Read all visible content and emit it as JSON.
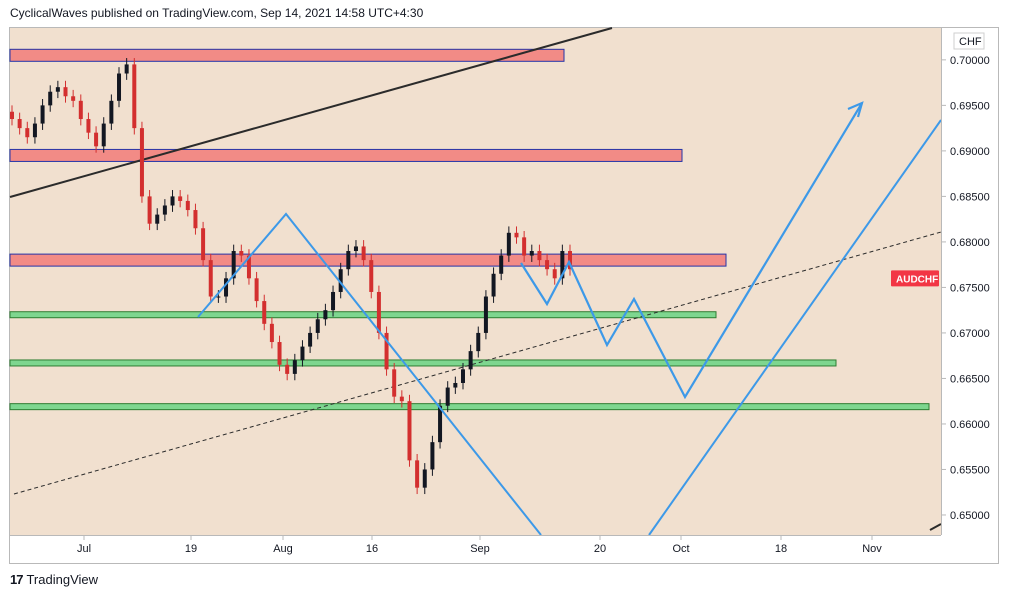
{
  "header": {
    "text": "CyclicalWaves published on TradingView.com, Sep 14, 2021 14:58 UTC+4:30"
  },
  "footer": {
    "logo": "17",
    "brand": "TradingView"
  },
  "chart_data": {
    "type": "candlestick",
    "symbol": "AUDCHF",
    "currency": "CHF",
    "ylim": [
      0.6478,
      0.7035
    ],
    "y_ticks": [
      "0.70000",
      "0.69500",
      "0.69000",
      "0.68500",
      "0.68000",
      "0.67500",
      "0.67000",
      "0.66500",
      "0.66000",
      "0.65500",
      "0.65000"
    ],
    "x_ticks": [
      "Jul",
      "19",
      "Aug",
      "16",
      "Sep",
      "20",
      "Oct",
      "18",
      "Nov"
    ],
    "price_label": {
      "text": "AUDCHF",
      "value": 0.676,
      "color": "#f23645"
    },
    "colors": {
      "background": "#f1e0cf",
      "resistance": "#f28b86",
      "support": "#7ed68f",
      "path": "#3d99e8",
      "trendline": "#2b2b2b"
    },
    "resistance_zones": [
      0.7005,
      0.6895,
      0.678
    ],
    "support_zones": [
      0.672,
      0.6667,
      0.6619
    ],
    "closes": [
      0.6935,
      0.6925,
      0.6915,
      0.693,
      0.695,
      0.6965,
      0.697,
      0.696,
      0.6955,
      0.6935,
      0.692,
      0.6905,
      0.693,
      0.6955,
      0.6985,
      0.6995,
      0.6925,
      0.685,
      0.682,
      0.683,
      0.684,
      0.685,
      0.6845,
      0.6835,
      0.6815,
      0.678,
      0.674,
      0.674,
      0.676,
      0.679,
      0.6785,
      0.676,
      0.6735,
      0.671,
      0.669,
      0.6665,
      0.6655,
      0.667,
      0.6685,
      0.67,
      0.6715,
      0.6725,
      0.6745,
      0.677,
      0.679,
      0.6795,
      0.678,
      0.6745,
      0.67,
      0.666,
      0.663,
      0.6625,
      0.656,
      0.653,
      0.655,
      0.658,
      0.662,
      0.664,
      0.6645,
      0.666,
      0.668,
      0.67,
      0.674,
      0.6765,
      0.6785,
      0.681,
      0.6805,
      0.6785,
      0.679,
      0.678,
      0.677,
      0.676,
      0.679,
      0.677
    ]
  }
}
